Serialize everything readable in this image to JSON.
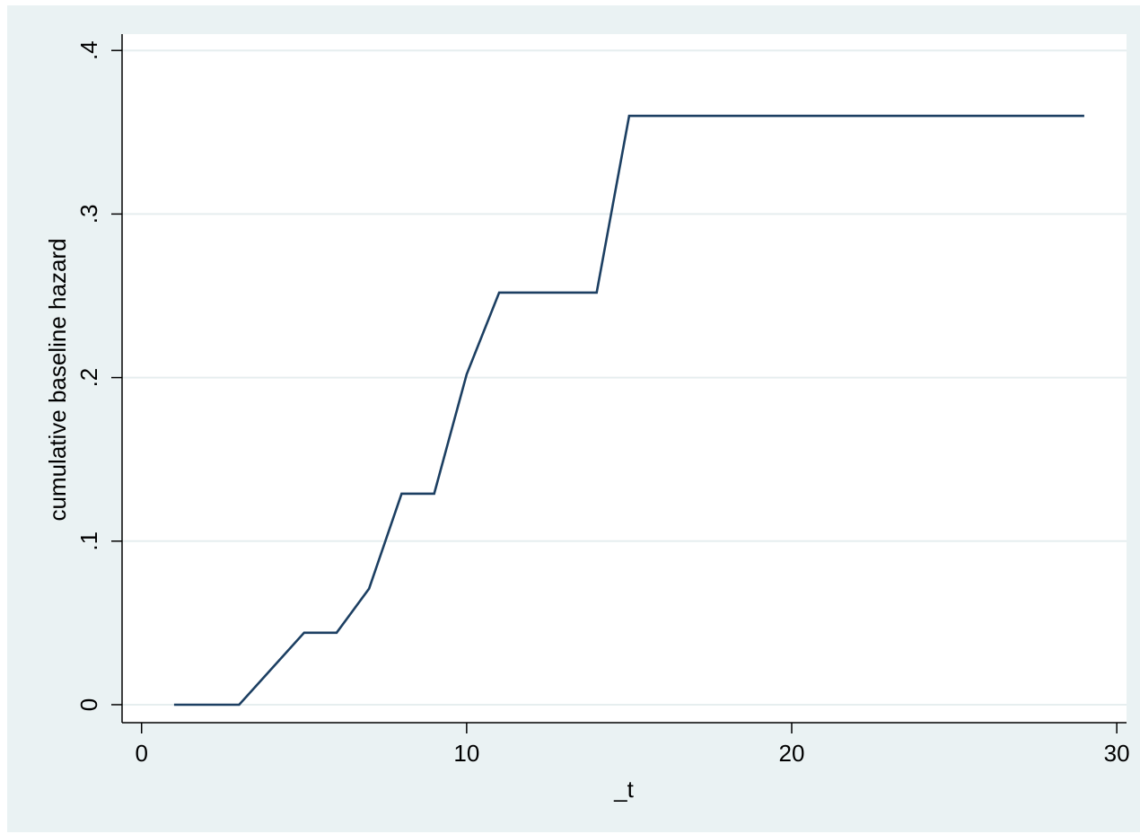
{
  "colors": {
    "outer_background": "#eaf2f3",
    "plot_background": "#ffffff",
    "gridline": "#e6eeef",
    "axis": "#000000",
    "series_line": "#1c3f62"
  },
  "chart_data": {
    "type": "line",
    "title": "",
    "xlabel": "_t",
    "ylabel": "cumulative baseline hazard",
    "xlim": [
      -0.6,
      30.3
    ],
    "ylim": [
      -0.011,
      0.41
    ],
    "x_ticks": [
      {
        "value": 0,
        "label": "0"
      },
      {
        "value": 10,
        "label": "10"
      },
      {
        "value": 20,
        "label": "20"
      },
      {
        "value": 30,
        "label": "30"
      }
    ],
    "y_ticks": [
      {
        "value": 0,
        "label": "0"
      },
      {
        "value": 0.1,
        "label": ".1"
      },
      {
        "value": 0.2,
        "label": ".2"
      },
      {
        "value": 0.3,
        "label": ".3"
      },
      {
        "value": 0.4,
        "label": ".4"
      }
    ],
    "grid": "horizontal",
    "legend": "none",
    "series": [
      {
        "x": [
          1,
          2,
          3,
          4,
          5,
          6,
          7,
          8,
          9,
          10,
          11,
          12,
          13,
          14,
          15,
          29
        ],
        "values": [
          0,
          0,
          0,
          0.022,
          0.044,
          0.044,
          0.071,
          0.129,
          0.129,
          0.202,
          0.252,
          0.252,
          0.252,
          0.252,
          0.36,
          0.36
        ]
      }
    ]
  }
}
